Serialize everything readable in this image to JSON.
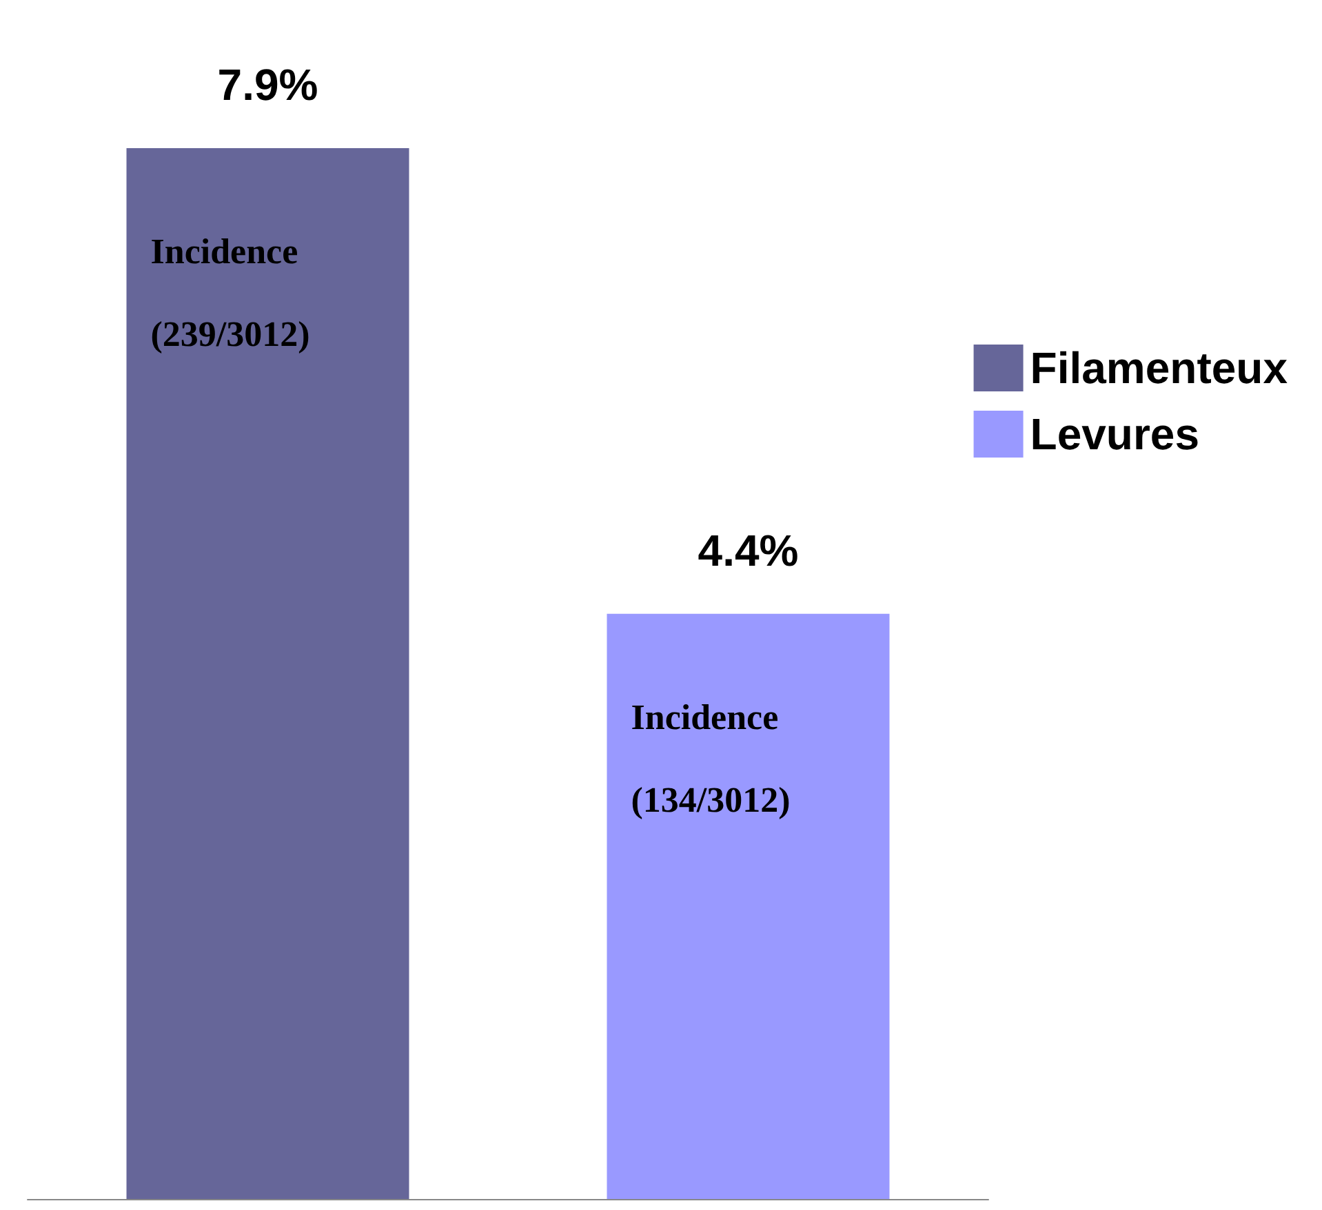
{
  "chart_data": {
    "type": "bar",
    "categories": [
      null,
      null
    ],
    "stacked": true,
    "legend": "right",
    "series": [
      {
        "name": "Filamenteux",
        "color": "#666699",
        "values": [
          7.9,
          null
        ],
        "value_labels": [
          "7.9%",
          null
        ]
      },
      {
        "name": "Levures",
        "color": "#9999ff",
        "values": [
          null,
          4.4
        ],
        "value_labels": [
          null,
          "4.4%"
        ]
      }
    ],
    "annotations": [
      "Incidence\n(239/3012)",
      "Incidence\n(134/3012)"
    ]
  }
}
